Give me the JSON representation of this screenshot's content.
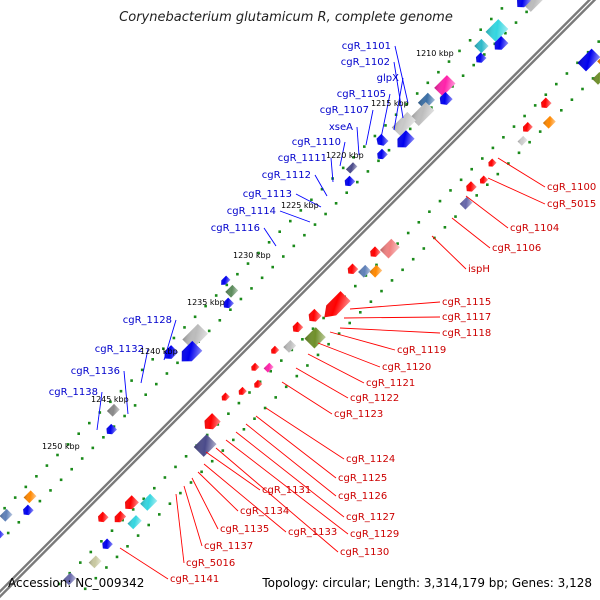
{
  "title": "Corynebacterium glutamicum R, complete genome",
  "accession_label": "Accession: ",
  "accession": "NC_009342",
  "summary": {
    "topology_label": "Topology: ",
    "topology": "circular",
    "length_label": "; Length: ",
    "length": "3,314,179 bp",
    "genes_label": "; Genes: ",
    "genes": "3,128"
  },
  "colors": {
    "label_blue": "#0000cc",
    "label_red": "#cc0000",
    "dot_green": "#1a8a1a",
    "leader_blue": "#0000ff",
    "leader_red": "#ff0000"
  },
  "ticks": [
    "1210 kbp",
    "1215 kbp",
    "1220 kbp",
    "1225 kbp",
    "1230 kbp",
    "1235 kbp",
    "1240 kbp",
    "1245 kbp",
    "1250 kbp"
  ],
  "upper_labels": [
    "cgR_1101",
    "cgR_1102",
    "glpX",
    "cgR_1105",
    "cgR_1107",
    "xseA",
    "cgR_1110",
    "cgR_1111",
    "cgR_1112",
    "cgR_1113",
    "cgR_1114",
    "cgR_1116",
    "cgR_1128",
    "cgR_1132",
    "cgR_1136",
    "cgR_1138"
  ],
  "lower_labels": [
    "cgR_1100",
    "cgR_5015",
    "cgR_1104",
    "cgR_1106",
    "ispH",
    "cgR_1115",
    "cgR_1117",
    "cgR_1118",
    "cgR_1119",
    "cgR_1120",
    "cgR_1121",
    "cgR_1122",
    "cgR_1123",
    "cgR_1124",
    "cgR_1125",
    "cgR_1126",
    "cgR_1127",
    "cgR_1129",
    "cgR_1130",
    "cgR_1131",
    "cgR_1133",
    "cgR_1134",
    "cgR_1135",
    "cgR_1137",
    "cgR_5016",
    "cgR_1141"
  ]
}
